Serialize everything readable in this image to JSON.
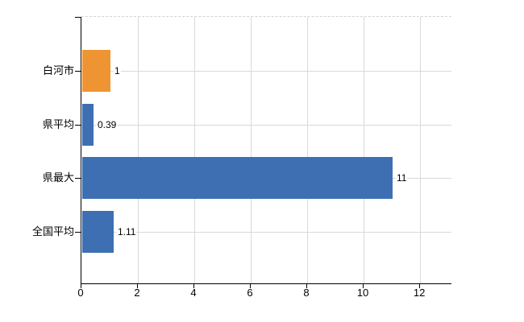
{
  "chart_data": {
    "type": "bar",
    "orientation": "horizontal",
    "categories": [
      "白河市",
      "県平均",
      "県最大",
      "全国平均"
    ],
    "values": [
      1,
      0.39,
      11,
      1.11
    ],
    "value_labels": [
      "1",
      "0.39",
      "11",
      "1.11"
    ],
    "series": [
      {
        "name": "values",
        "values": [
          1,
          0.39,
          11,
          1.11
        ]
      }
    ],
    "bar_colors": [
      "#ef9433",
      "#3d6fb2",
      "#3d6fb2",
      "#3d6fb2"
    ],
    "x_ticks": [
      0,
      2,
      4,
      6,
      8,
      10,
      12
    ],
    "x_tick_labels": [
      "0",
      "2",
      "4",
      "6",
      "8",
      "10",
      "12"
    ],
    "xlim": [
      0,
      13.14
    ],
    "grid": true,
    "legend": "none",
    "title": "",
    "xlabel": "",
    "ylabel": ""
  },
  "colors": {
    "highlight_bar": "#ef9433",
    "default_bar": "#3d6fb2",
    "gridline": "#d9d9d9",
    "axis": "#000000",
    "text": "#000000",
    "background": "#ffffff"
  }
}
